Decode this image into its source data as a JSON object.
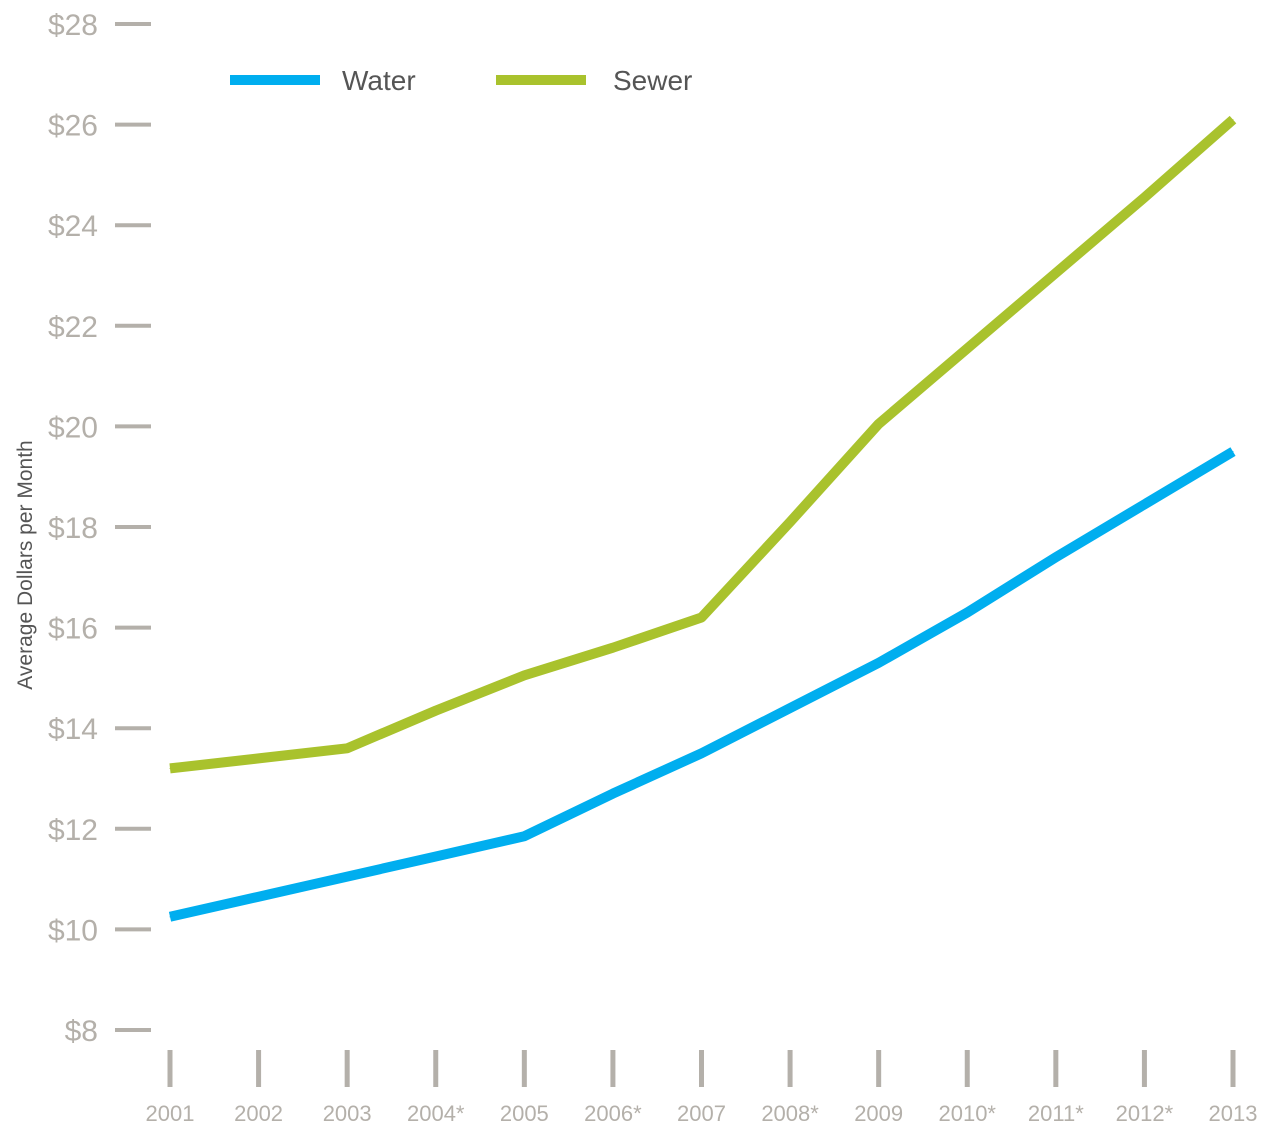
{
  "chart_data": {
    "type": "line",
    "title": "",
    "xlabel": "",
    "ylabel": "Average Dollars per Month",
    "categories": [
      "2001",
      "2002",
      "2003",
      "2004*",
      "2005",
      "2006*",
      "2007",
      "2008*",
      "2009",
      "2010*",
      "2011*",
      "2012*",
      "2013"
    ],
    "yticks": [
      8,
      10,
      12,
      14,
      16,
      18,
      20,
      22,
      24,
      26,
      28
    ],
    "ytick_labels": [
      "$8",
      "$10",
      "$12",
      "$14",
      "$16",
      "$18",
      "$20",
      "$22",
      "$24",
      "$26",
      "$28"
    ],
    "ylim": [
      8,
      28
    ],
    "grid": false,
    "legend_position": "top-left",
    "series": [
      {
        "name": "Water",
        "color": "#00aeef",
        "values": [
          10.25,
          10.65,
          11.05,
          11.45,
          11.85,
          12.7,
          13.5,
          14.4,
          15.3,
          16.3,
          17.4,
          18.45,
          19.5
        ]
      },
      {
        "name": "Sewer",
        "color": "#a9c22d",
        "values": [
          13.2,
          13.4,
          13.6,
          14.35,
          15.05,
          15.6,
          16.2,
          18.1,
          20.05,
          21.55,
          23.05,
          24.55,
          26.1
        ]
      }
    ],
    "colors": {
      "tick": "#b4b0aa",
      "text": "#555555"
    }
  }
}
